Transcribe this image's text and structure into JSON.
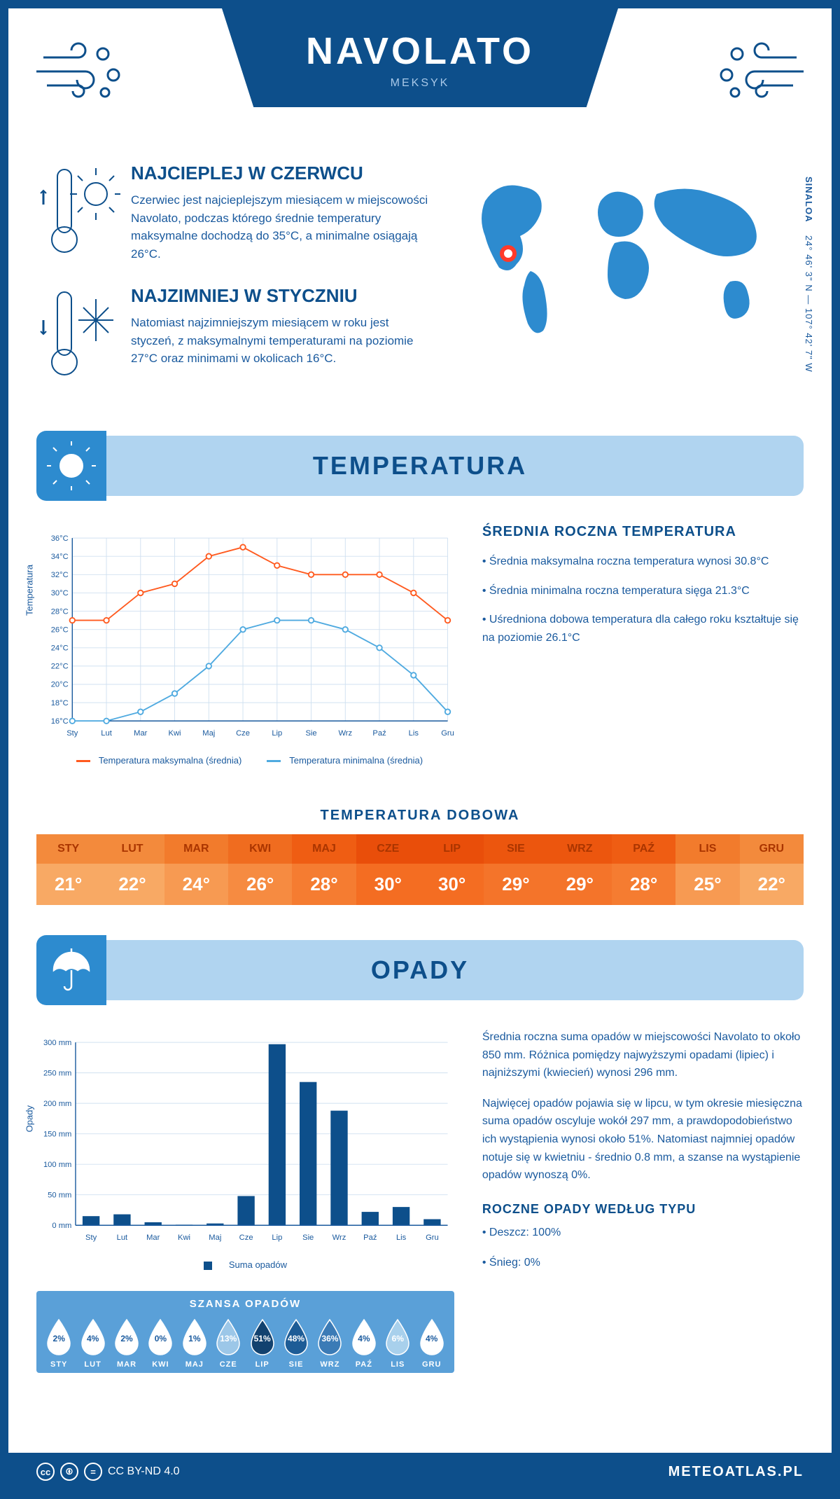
{
  "header": {
    "title": "NAVOLATO",
    "country": "MEKSYK"
  },
  "intro": {
    "warmest": {
      "title": "NAJCIEPLEJ W CZERWCU",
      "text": "Czerwiec jest najcieplejszym miesiącem w miejscowości Navolato, podczas którego średnie temperatury maksymalne dochodzą do 35°C, a minimalne osiągają 26°C."
    },
    "coldest": {
      "title": "NAJZIMNIEJ W STYCZNIU",
      "text": "Natomiast najzimniejszym miesiącem w roku jest styczeń, z maksymalnymi temperaturami na poziomie 27°C oraz minimami w okolicach 16°C."
    },
    "region": "SINALOA",
    "coords": "24° 46' 3\" N — 107° 42' 7\" W"
  },
  "temperature": {
    "section_title": "TEMPERATURA",
    "chart": {
      "type": "line",
      "months": [
        "Sty",
        "Lut",
        "Mar",
        "Kwi",
        "Maj",
        "Cze",
        "Lip",
        "Sie",
        "Wrz",
        "Paź",
        "Lis",
        "Gru"
      ],
      "series": [
        {
          "name": "Temperatura maksymalna (średnia)",
          "color": "#ff5a1f",
          "values": [
            27,
            27,
            30,
            31,
            34,
            35,
            33,
            32,
            32,
            32,
            30,
            27
          ]
        },
        {
          "name": "Temperatura minimalna (średnia)",
          "color": "#4faae0",
          "values": [
            16,
            16,
            17,
            19,
            22,
            26,
            27,
            27,
            26,
            24,
            21,
            17
          ]
        }
      ],
      "ylim": [
        16,
        36
      ],
      "ytick_step": 2,
      "ylabel": "Temperatura",
      "tick_fontsize": 12,
      "tick_color": "#1a5a9e",
      "grid_color": "#d0e0f0",
      "background_color": "#ffffff",
      "axis_color": "#1a5a9e",
      "line_width": 2,
      "marker": "circle"
    },
    "summary": {
      "title": "ŚREDNIA ROCZNA TEMPERATURA",
      "bullets": [
        "• Średnia maksymalna roczna temperatura wynosi 30.8°C",
        "• Średnia minimalna roczna temperatura sięga 21.3°C",
        "• Uśredniona dobowa temperatura dla całego roku kształtuje się na poziomie 26.1°C"
      ]
    },
    "daily": {
      "title": "TEMPERATURA DOBOWA",
      "months": [
        "STY",
        "LUT",
        "MAR",
        "KWI",
        "MAJ",
        "CZE",
        "LIP",
        "SIE",
        "WRZ",
        "PAŹ",
        "LIS",
        "GRU"
      ],
      "values": [
        "21°",
        "22°",
        "24°",
        "26°",
        "28°",
        "30°",
        "30°",
        "29°",
        "29°",
        "28°",
        "25°",
        "22°"
      ],
      "hdr_colors": [
        "#f38a3c",
        "#f38a3c",
        "#f27b2c",
        "#f06c1f",
        "#ef5d13",
        "#e94e0a",
        "#e94e0a",
        "#ec560e",
        "#ec560e",
        "#ef5d13",
        "#f27b2c",
        "#f38a3c"
      ],
      "val_colors": [
        "#f8a964",
        "#f8a964",
        "#f79a52",
        "#f68b41",
        "#f57c31",
        "#f46d22",
        "#f46d22",
        "#f4742a",
        "#f4742a",
        "#f57c31",
        "#f79a52",
        "#f8a964"
      ],
      "hdr_text": "#aa3500",
      "val_text": "#ffffff",
      "fontsize_header": 16,
      "fontsize_value": 26
    }
  },
  "precip": {
    "section_title": "OPADY",
    "chart": {
      "type": "bar",
      "months": [
        "Sty",
        "Lut",
        "Mar",
        "Kwi",
        "Maj",
        "Cze",
        "Lip",
        "Sie",
        "Wrz",
        "Paź",
        "Lis",
        "Gru"
      ],
      "values": [
        15,
        18,
        5,
        1,
        3,
        48,
        297,
        235,
        188,
        22,
        30,
        10
      ],
      "bar_color": "#0d4f8b",
      "ylim": [
        0,
        300
      ],
      "ytick_step": 50,
      "ylabel": "Opady",
      "legend": "Suma opadów",
      "tick_fontsize": 12,
      "tick_color": "#1a5a9e",
      "grid_color": "#d0e0f0",
      "axis_color": "#1a5a9e",
      "bar_width": 0.55
    },
    "text1": "Średnia roczna suma opadów w miejscowości Navolato to około 850 mm. Różnica pomiędzy najwyższymi opadami (lipiec) i najniższymi (kwiecień) wynosi 296 mm.",
    "text2": "Najwięcej opadów pojawia się w lipcu, w tym okresie miesięczna suma opadów oscyluje wokół 297 mm, a prawdopodobieństwo ich wystąpienia wynosi około 51%. Natomiast najmniej opadów notuje się w kwietniu - średnio 0.8 mm, a szanse na wystąpienie opadów wynoszą 0%.",
    "chance": {
      "title": "SZANSA OPADÓW",
      "months": [
        "STY",
        "LUT",
        "MAR",
        "KWI",
        "MAJ",
        "CZE",
        "LIP",
        "SIE",
        "WRZ",
        "PAŹ",
        "LIS",
        "GRU"
      ],
      "pct": [
        "2%",
        "4%",
        "2%",
        "0%",
        "1%",
        "13%",
        "51%",
        "48%",
        "36%",
        "4%",
        "6%",
        "4%"
      ],
      "fill": [
        "#ffffff",
        "#ffffff",
        "#ffffff",
        "#ffffff",
        "#ffffff",
        "#9cc7e8",
        "#12426f",
        "#1d5c96",
        "#3b7bb6",
        "#ffffff",
        "#a8d0ec",
        "#ffffff"
      ],
      "text": [
        "#1a5a9e",
        "#1a5a9e",
        "#1a5a9e",
        "#1a5a9e",
        "#1a5a9e",
        "#ffffff",
        "#ffffff",
        "#ffffff",
        "#ffffff",
        "#1a5a9e",
        "#ffffff",
        "#1a5a9e"
      ],
      "panel_bg": "#5aa0d8"
    },
    "bytype": {
      "title": "ROCZNE OPADY WEDŁUG TYPU",
      "items": [
        "• Deszcz: 100%",
        "• Śnieg: 0%"
      ]
    }
  },
  "footer": {
    "license": "CC BY-ND 4.0",
    "brand": "METEOATLAS.PL"
  },
  "colors": {
    "primary": "#0d4f8b",
    "primary_light": "#b0d4f0",
    "accent": "#2d8bcf",
    "text": "#1a5a9e",
    "marker": "#ff3a2a",
    "map": "#2d8bcf"
  }
}
